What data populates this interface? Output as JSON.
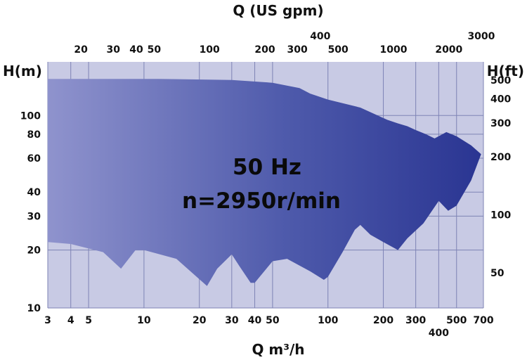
{
  "chart_data": {
    "type": "area",
    "title": "Q (US gpm)",
    "xlabel": "Q m³/h",
    "ylabel_left": "H(m)",
    "ylabel_right": "H(ft)",
    "scale": "log-log",
    "xlim": [
      3,
      700
    ],
    "ylim": [
      10,
      190
    ],
    "grid": true,
    "x_ticks_bottom": [
      {
        "v": 3,
        "label": "3"
      },
      {
        "v": 4,
        "label": "4"
      },
      {
        "v": 5,
        "label": "5"
      },
      {
        "v": 10,
        "label": "10"
      },
      {
        "v": 20,
        "label": "20"
      },
      {
        "v": 30,
        "label": "30"
      },
      {
        "v": 40,
        "label": "40"
      },
      {
        "v": 50,
        "label": "50"
      },
      {
        "v": 100,
        "label": "100"
      },
      {
        "v": 200,
        "label": "200"
      },
      {
        "v": 300,
        "label": "300"
      },
      {
        "v": 400,
        "label": "400"
      },
      {
        "v": 500,
        "label": "500"
      },
      {
        "v": 700,
        "label": "700"
      }
    ],
    "x_ticks_top": [
      {
        "v": 20,
        "label": "20"
      },
      {
        "v": 30,
        "label": "30"
      },
      {
        "v": 40,
        "label": "40"
      },
      {
        "v": 50,
        "label": "50"
      },
      {
        "v": 100,
        "label": "100"
      },
      {
        "v": 200,
        "label": "200"
      },
      {
        "v": 300,
        "label": "300"
      },
      {
        "v": 400,
        "label": "400"
      },
      {
        "v": 500,
        "label": "500"
      },
      {
        "v": 1000,
        "label": "1000"
      },
      {
        "v": 2000,
        "label": "2000"
      },
      {
        "v": 3000,
        "label": "3000"
      }
    ],
    "y_ticks_left": [
      {
        "v": 10,
        "label": "10"
      },
      {
        "v": 20,
        "label": "20"
      },
      {
        "v": 30,
        "label": "30"
      },
      {
        "v": 40,
        "label": "40"
      },
      {
        "v": 60,
        "label": "60"
      },
      {
        "v": 80,
        "label": "80"
      },
      {
        "v": 100,
        "label": "100"
      }
    ],
    "y_ticks_right": [
      {
        "v": 50,
        "label": "50"
      },
      {
        "v": 100,
        "label": "100"
      },
      {
        "v": 200,
        "label": "200"
      },
      {
        "v": 300,
        "label": "300"
      },
      {
        "v": 400,
        "label": "400"
      },
      {
        "v": 500,
        "label": "500"
      }
    ],
    "annotations": [
      "50 Hz",
      "n=2950r/min"
    ],
    "coverage_boundary": {
      "upper": [
        [
          3,
          155
        ],
        [
          12,
          155
        ],
        [
          30,
          153
        ],
        [
          50,
          148
        ],
        [
          70,
          139
        ],
        [
          80,
          130
        ],
        [
          100,
          121
        ],
        [
          150,
          110
        ],
        [
          210,
          95
        ],
        [
          240,
          91
        ],
        [
          270,
          88
        ],
        [
          300,
          84
        ],
        [
          340,
          80
        ],
        [
          380,
          76
        ],
        [
          440,
          82
        ],
        [
          500,
          78
        ],
        [
          600,
          70
        ],
        [
          680,
          63
        ]
      ],
      "lower": [
        [
          680,
          63
        ],
        [
          600,
          46
        ],
        [
          500,
          34
        ],
        [
          450,
          32
        ],
        [
          400,
          36
        ],
        [
          330,
          27.5
        ],
        [
          270,
          23
        ],
        [
          240,
          20
        ],
        [
          200,
          22
        ],
        [
          170,
          24
        ],
        [
          150,
          27
        ],
        [
          140,
          25.5
        ],
        [
          120,
          19.5
        ],
        [
          100,
          14.5
        ],
        [
          95,
          14
        ],
        [
          80,
          15.5
        ],
        [
          60,
          18
        ],
        [
          50,
          17.5
        ],
        [
          40,
          13.5
        ],
        [
          38,
          13.5
        ],
        [
          33,
          16.5
        ],
        [
          30,
          19
        ],
        [
          25,
          16
        ],
        [
          22,
          13
        ],
        [
          15,
          18
        ],
        [
          10,
          20
        ],
        [
          9,
          20
        ],
        [
          7.5,
          16
        ],
        [
          6,
          19.5
        ],
        [
          4,
          21.5
        ],
        [
          3,
          22
        ]
      ]
    },
    "colors": {
      "plot_bg": "#c8cae4",
      "grid": "#7e83b5",
      "fill_light": "#8f93cd",
      "fill_mid": "#4e5aab",
      "fill_dark": "#2a3592"
    }
  }
}
